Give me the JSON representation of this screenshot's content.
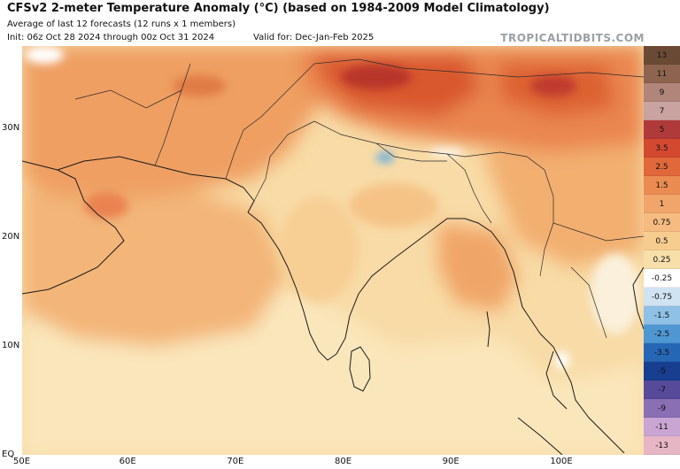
{
  "header": {
    "title": "CFSv2 2-meter Temperature Anomaly (°C) (based on 1984-2009 Model Climatology)",
    "subtitle": "Average of last 12 forecasts (12 runs x 1 members)",
    "init": "Init: 06z Oct 28 2024 through 00z Oct 31 2024",
    "valid": "Valid for: Dec-Jan-Feb 2025",
    "credit": "TROPICALTIDBITS.COM"
  },
  "axes": {
    "lat_labels": [
      {
        "label": "30N",
        "lat": 30
      },
      {
        "label": "20N",
        "lat": 20
      },
      {
        "label": "10N",
        "lat": 10
      },
      {
        "label": "EQ",
        "lat": 0
      }
    ],
    "lon_labels": [
      {
        "label": "50E",
        "lon": 50
      },
      {
        "label": "60E",
        "lon": 60
      },
      {
        "label": "70E",
        "lon": 70
      },
      {
        "label": "80E",
        "lon": 80
      },
      {
        "label": "90E",
        "lon": 90
      },
      {
        "label": "100E",
        "lon": 100
      }
    ]
  },
  "colorbar": [
    {
      "label": "13",
      "color": "#6b4a35"
    },
    {
      "label": "11",
      "color": "#8d6450"
    },
    {
      "label": "9",
      "color": "#b0857a"
    },
    {
      "label": "7",
      "color": "#c9a3a0"
    },
    {
      "label": "5",
      "color": "#b03a3a"
    },
    {
      "label": "3.5",
      "color": "#d2492f"
    },
    {
      "label": "2.5",
      "color": "#e0683a"
    },
    {
      "label": "1.5",
      "color": "#ea8b52"
    },
    {
      "label": "1",
      "color": "#f1a56a"
    },
    {
      "label": "0.75",
      "color": "#f5bb80"
    },
    {
      "label": "0.5",
      "color": "#f7cc8f"
    },
    {
      "label": "0.25",
      "color": "#f8dfaa"
    },
    {
      "label": "-0.25",
      "color": "#ffffff"
    },
    {
      "label": "-0.75",
      "color": "#cfe3f3"
    },
    {
      "label": "-1.5",
      "color": "#8fc0e6"
    },
    {
      "label": "-2.5",
      "color": "#4f97d3"
    },
    {
      "label": "-3.5",
      "color": "#2566b5"
    },
    {
      "label": "-5",
      "color": "#173e8f"
    },
    {
      "label": "-7",
      "color": "#574a9a"
    },
    {
      "label": "-9",
      "color": "#8a6fb5"
    },
    {
      "label": "-11",
      "color": "#c9a5d3"
    },
    {
      "label": "-13",
      "color": "#e7b6c5"
    }
  ]
}
